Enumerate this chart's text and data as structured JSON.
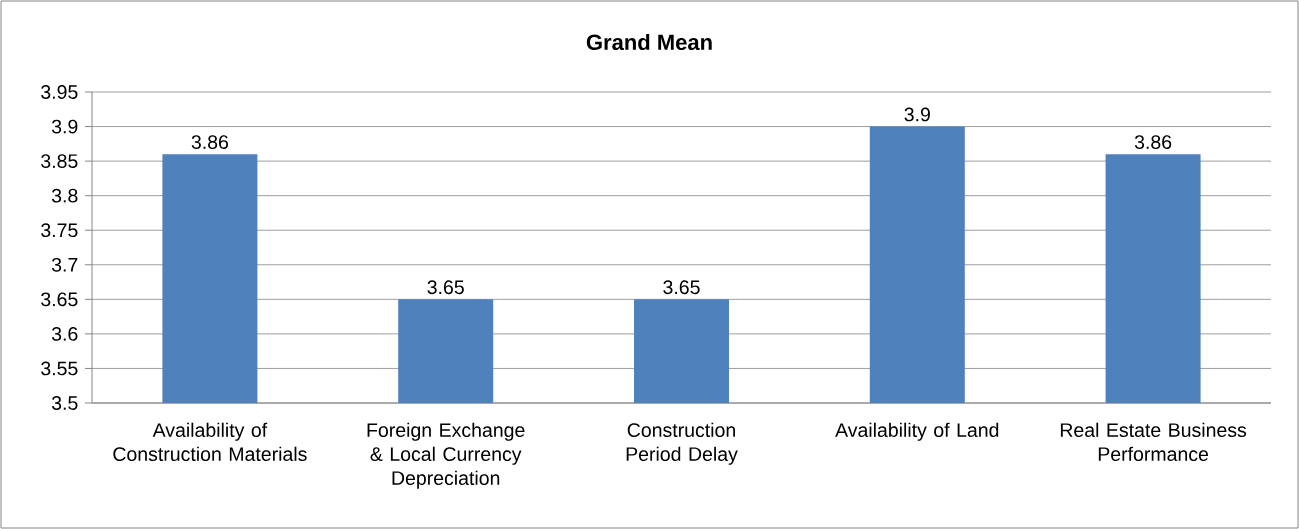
{
  "chart_data": {
    "type": "bar",
    "title": "Grand Mean",
    "categories": [
      "Availability of Construction Materials",
      "Foreign Exchange & Local Currency Depreciation",
      "Construction Period Delay",
      "Availability of Land",
      "Real Estate Business Performance"
    ],
    "values": [
      3.86,
      3.65,
      3.65,
      3.9,
      3.86
    ],
    "color": "#4f81bd",
    "ylim": [
      3.5,
      3.95
    ],
    "yticks": [
      3.5,
      3.55,
      3.6,
      3.65,
      3.7,
      3.75,
      3.8,
      3.85,
      3.9,
      3.95
    ],
    "grid": "y",
    "data_labels": true
  }
}
